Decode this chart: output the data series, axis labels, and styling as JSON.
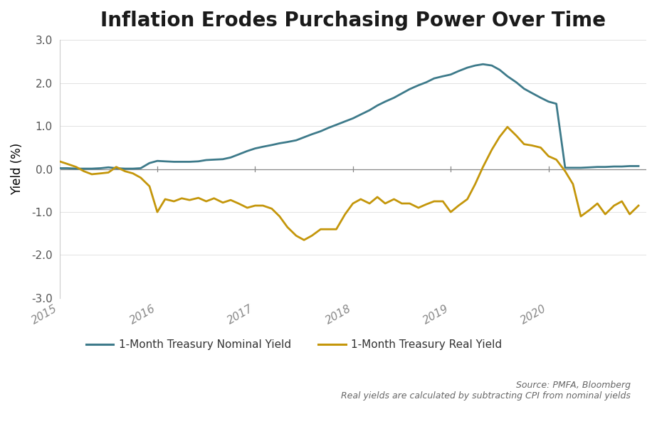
{
  "title": "Inflation Erodes Purchasing Power Over Time",
  "ylabel": "Yield (%)",
  "ylim": [
    -3.0,
    3.0
  ],
  "yticks": [
    -3.0,
    -2.0,
    -1.0,
    0.0,
    1.0,
    2.0,
    3.0
  ],
  "source_text": "Source: PMFA, Bloomberg\nReal yields are calculated by subtracting CPI from nominal yields",
  "nominal_color": "#3d7a8a",
  "real_color": "#c4960a",
  "background_color": "#ffffff",
  "legend_label_nominal": "1-Month Treasury Nominal Yield",
  "legend_label_real": "1-Month Treasury Real Yield",
  "nominal_x": [
    2015.0,
    2015.08,
    2015.17,
    2015.25,
    2015.33,
    2015.42,
    2015.5,
    2015.58,
    2015.67,
    2015.75,
    2015.83,
    2015.92,
    2016.0,
    2016.08,
    2016.17,
    2016.25,
    2016.33,
    2016.42,
    2016.5,
    2016.58,
    2016.67,
    2016.75,
    2016.83,
    2016.92,
    2017.0,
    2017.08,
    2017.17,
    2017.25,
    2017.33,
    2017.42,
    2017.5,
    2017.58,
    2017.67,
    2017.75,
    2017.83,
    2017.92,
    2018.0,
    2018.08,
    2018.17,
    2018.25,
    2018.33,
    2018.42,
    2018.5,
    2018.58,
    2018.67,
    2018.75,
    2018.83,
    2018.92,
    2019.0,
    2019.08,
    2019.17,
    2019.25,
    2019.33,
    2019.42,
    2019.5,
    2019.58,
    2019.67,
    2019.75,
    2019.83,
    2019.92,
    2020.0,
    2020.08,
    2020.17,
    2020.25,
    2020.33,
    2020.42,
    2020.5,
    2020.58,
    2020.67,
    2020.75,
    2020.83,
    2020.92
  ],
  "nominal_y": [
    0.02,
    0.02,
    0.01,
    0.01,
    0.01,
    0.02,
    0.04,
    0.02,
    0.01,
    0.01,
    0.02,
    0.14,
    0.19,
    0.18,
    0.17,
    0.17,
    0.17,
    0.18,
    0.21,
    0.22,
    0.23,
    0.27,
    0.34,
    0.42,
    0.48,
    0.52,
    0.56,
    0.6,
    0.63,
    0.67,
    0.74,
    0.81,
    0.88,
    0.96,
    1.03,
    1.11,
    1.18,
    1.27,
    1.37,
    1.48,
    1.57,
    1.66,
    1.76,
    1.86,
    1.95,
    2.02,
    2.11,
    2.16,
    2.2,
    2.28,
    2.36,
    2.41,
    2.44,
    2.41,
    2.31,
    2.16,
    2.02,
    1.87,
    1.77,
    1.66,
    1.57,
    1.52,
    0.03,
    0.03,
    0.03,
    0.04,
    0.05,
    0.05,
    0.06,
    0.06,
    0.07,
    0.07
  ],
  "real_x": [
    2015.0,
    2015.08,
    2015.17,
    2015.25,
    2015.33,
    2015.42,
    2015.5,
    2015.58,
    2015.67,
    2015.75,
    2015.83,
    2015.92,
    2016.0,
    2016.08,
    2016.17,
    2016.25,
    2016.33,
    2016.42,
    2016.5,
    2016.58,
    2016.67,
    2016.75,
    2016.83,
    2016.92,
    2017.0,
    2017.08,
    2017.17,
    2017.25,
    2017.33,
    2017.42,
    2017.5,
    2017.58,
    2017.67,
    2017.75,
    2017.83,
    2017.92,
    2018.0,
    2018.08,
    2018.17,
    2018.25,
    2018.33,
    2018.42,
    2018.5,
    2018.58,
    2018.67,
    2018.75,
    2018.83,
    2018.92,
    2019.0,
    2019.08,
    2019.17,
    2019.25,
    2019.33,
    2019.42,
    2019.5,
    2019.58,
    2019.67,
    2019.75,
    2019.83,
    2019.92,
    2020.0,
    2020.08,
    2020.17,
    2020.25,
    2020.33,
    2020.42,
    2020.5,
    2020.58,
    2020.67,
    2020.75,
    2020.83,
    2020.92
  ],
  "real_y": [
    0.18,
    0.12,
    0.05,
    -0.05,
    -0.12,
    -0.1,
    -0.08,
    0.05,
    -0.05,
    -0.1,
    -0.2,
    -0.4,
    -1.0,
    -0.7,
    -0.75,
    -0.68,
    -0.72,
    -0.67,
    -0.75,
    -0.68,
    -0.78,
    -0.72,
    -0.8,
    -0.9,
    -0.85,
    -0.85,
    -0.92,
    -1.1,
    -1.35,
    -1.55,
    -1.65,
    -1.55,
    -1.4,
    -1.4,
    -1.4,
    -1.05,
    -0.8,
    -0.7,
    -0.8,
    -0.65,
    -0.8,
    -0.7,
    -0.8,
    -0.8,
    -0.9,
    -0.82,
    -0.75,
    -0.75,
    -1.0,
    -0.85,
    -0.7,
    -0.35,
    0.05,
    0.45,
    0.75,
    0.98,
    0.78,
    0.58,
    0.55,
    0.5,
    0.3,
    0.22,
    -0.05,
    -0.35,
    -1.1,
    -0.95,
    -0.8,
    -1.05,
    -0.85,
    -0.75,
    -1.05,
    -0.85
  ]
}
